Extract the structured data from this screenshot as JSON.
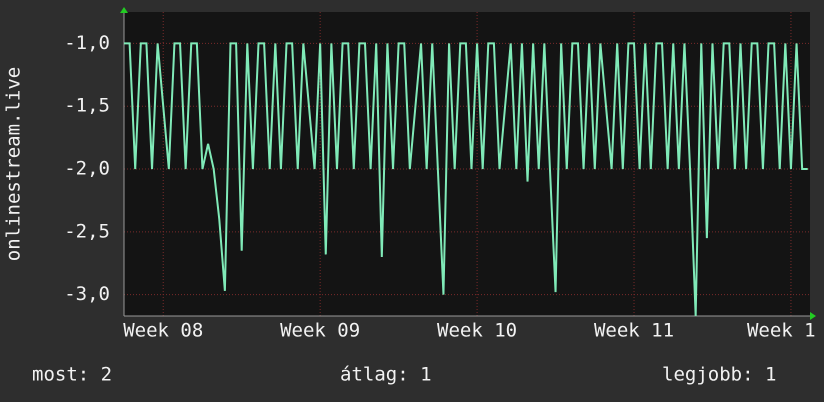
{
  "chart_data": {
    "type": "line",
    "y_label": "onlinestream.live",
    "x": [
      0,
      0.25,
      0.5,
      0.75,
      1,
      1.25,
      1.5,
      1.75,
      2,
      2.25,
      2.5,
      2.75,
      3,
      3.25,
      3.5,
      3.75,
      4,
      4.25,
      4.5,
      4.75,
      5,
      5.25,
      5.5,
      5.75,
      6,
      6.25,
      6.5,
      6.75,
      7,
      7.25,
      7.5,
      7.75,
      8,
      8.25,
      8.5,
      8.75,
      9,
      9.25,
      9.5,
      9.75,
      10,
      10.25,
      10.5,
      10.75,
      11,
      11.25,
      11.5,
      11.75,
      12,
      12.25,
      12.5,
      12.75,
      13,
      13.25,
      13.5,
      13.75,
      14,
      14.25,
      14.5,
      14.75,
      15,
      15.25,
      15.5,
      15.75,
      16,
      16.25,
      16.5,
      16.75,
      17,
      17.25,
      17.5,
      17.75,
      18,
      18.25,
      18.5,
      18.75,
      19,
      19.25,
      19.5,
      19.75,
      20,
      20.25,
      20.5,
      20.75,
      21,
      21.25,
      21.5,
      21.75,
      22,
      22.25,
      22.5,
      22.75,
      23,
      23.25,
      23.5,
      23.75,
      24,
      24.25,
      24.5,
      24.75,
      25,
      25.25,
      25.5,
      25.75,
      26,
      26.25,
      26.5,
      26.75,
      27,
      27.25,
      27.5,
      27.75,
      28,
      28.25,
      28.5,
      28.75,
      29,
      29.25,
      29.5,
      29.75,
      30,
      30.25,
      30.5
    ],
    "series": [
      {
        "color": "#80eab8",
        "values": [
          -1,
          -1,
          -2,
          -1,
          -1,
          -2,
          -1,
          -1.5,
          -2,
          -1,
          -1,
          -2,
          -1,
          -1,
          -2,
          -1.8,
          -2,
          -2.4,
          -2.97,
          -1,
          -1,
          -2.65,
          -1,
          -2,
          -1,
          -1,
          -2,
          -1,
          -2,
          -1,
          -1,
          -2,
          -1,
          -1.5,
          -2,
          -1,
          -2.68,
          -1,
          -2,
          -1,
          -1,
          -2,
          -1,
          -1,
          -2,
          -1,
          -2.7,
          -1,
          -2,
          -1,
          -1,
          -2,
          -1.5,
          -1,
          -2,
          -1,
          -2,
          -3.0,
          -1,
          -2,
          -1,
          -1,
          -2,
          -1,
          -2,
          -1,
          -1,
          -2,
          -1.5,
          -1,
          -2,
          -1,
          -2.1,
          -1,
          -2,
          -1,
          -2,
          -2.98,
          -1,
          -2,
          -1,
          -1,
          -2,
          -1,
          -2,
          -1,
          -1.5,
          -2,
          -1,
          -2,
          -1,
          -1,
          -2,
          -1,
          -2,
          -1,
          -1,
          -2,
          -1,
          -2,
          -1,
          -2,
          -3.17,
          -1,
          -2.55,
          -1,
          -2,
          -1,
          -1,
          -2,
          -1,
          -2,
          -1,
          -1,
          -2,
          -1,
          -1,
          -2,
          -1,
          -2,
          -1,
          -2,
          -2
        ]
      }
    ],
    "xlim": [
      0,
      30.6
    ],
    "xticks": [
      {
        "value": 1.75,
        "label": "Week 08"
      },
      {
        "value": 8.75,
        "label": "Week 09"
      },
      {
        "value": 15.75,
        "label": "Week 10"
      },
      {
        "value": 22.75,
        "label": "Week 11"
      },
      {
        "value": 29.75,
        "label": "Week 1"
      }
    ],
    "ylim": [
      -3.17,
      -0.75
    ],
    "yticks": [
      {
        "value": -1,
        "label": "-1,0"
      },
      {
        "value": -1.5,
        "label": "-1,5"
      },
      {
        "value": -2,
        "label": "-2,0"
      },
      {
        "value": -2.5,
        "label": "-2,5"
      },
      {
        "value": -3,
        "label": "-3,0"
      }
    ],
    "grid": true,
    "footer": [
      "most: 2",
      "átlag: 1",
      "legjobb: 1"
    ]
  }
}
